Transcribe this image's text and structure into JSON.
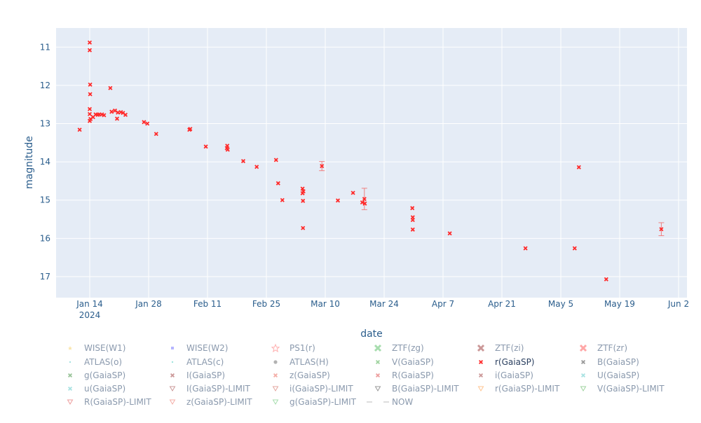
{
  "chart_data": {
    "type": "scatter",
    "title": "",
    "xlabel": "date",
    "ylabel": "magnitude",
    "x_range": [
      "2024-01-06",
      "2024-06-04"
    ],
    "y_range": [
      17.55,
      10.5
    ],
    "y_reversed": true,
    "grid": true,
    "x_ticks": [
      {
        "date": "2024-01-14",
        "label": "Jan 14",
        "sub": "2024"
      },
      {
        "date": "2024-01-28",
        "label": "Jan 28",
        "sub": ""
      },
      {
        "date": "2024-02-11",
        "label": "Feb 11",
        "sub": ""
      },
      {
        "date": "2024-02-25",
        "label": "Feb 25",
        "sub": ""
      },
      {
        "date": "2024-03-10",
        "label": "Mar 10",
        "sub": ""
      },
      {
        "date": "2024-03-24",
        "label": "Mar 24",
        "sub": ""
      },
      {
        "date": "2024-04-07",
        "label": "Apr 7",
        "sub": ""
      },
      {
        "date": "2024-04-21",
        "label": "Apr 21",
        "sub": ""
      },
      {
        "date": "2024-05-05",
        "label": "May 5",
        "sub": ""
      },
      {
        "date": "2024-05-19",
        "label": "May 19",
        "sub": ""
      },
      {
        "date": "2024-06-02",
        "label": "Jun 2",
        "sub": ""
      }
    ],
    "y_ticks": [
      11,
      12,
      13,
      14,
      15,
      16,
      17
    ],
    "series": [
      {
        "name": "r(GaiaSP)",
        "color": "#ff2a2a",
        "marker": "x",
        "points": [
          {
            "x": 11.6,
            "y": 13.16
          },
          {
            "x": 14.0,
            "y": 10.88
          },
          {
            "x": 14.0,
            "y": 11.08
          },
          {
            "x": 14.1,
            "y": 11.98
          },
          {
            "x": 14.1,
            "y": 12.23
          },
          {
            "x": 14.0,
            "y": 12.62
          },
          {
            "x": 14.0,
            "y": 12.75
          },
          {
            "x": 14.2,
            "y": 12.88
          },
          {
            "x": 14.0,
            "y": 12.93
          },
          {
            "x": 14.8,
            "y": 12.83
          },
          {
            "x": 15.4,
            "y": 12.76
          },
          {
            "x": 15.9,
            "y": 12.77
          },
          {
            "x": 16.3,
            "y": 12.76
          },
          {
            "x": 16.9,
            "y": 12.76
          },
          {
            "x": 17.4,
            "y": 12.78
          },
          {
            "x": 18.9,
            "y": 12.07
          },
          {
            "x": 19.2,
            "y": 12.69
          },
          {
            "x": 20.0,
            "y": 12.66
          },
          {
            "x": 20.7,
            "y": 12.71
          },
          {
            "x": 20.5,
            "y": 12.87
          },
          {
            "x": 21.4,
            "y": 12.7
          },
          {
            "x": 21.9,
            "y": 12.72
          },
          {
            "x": 22.5,
            "y": 12.77
          },
          {
            "x": 26.9,
            "y": 12.96
          },
          {
            "x": 27.7,
            "y": 13.0
          },
          {
            "x": 29.8,
            "y": 13.27
          },
          {
            "x": 37.7,
            "y": 13.16
          },
          {
            "x": 37.9,
            "y": 13.14
          },
          {
            "x": 41.6,
            "y": 13.6
          },
          {
            "x": 46.7,
            "y": 13.58
          },
          {
            "x": 46.6,
            "y": 13.64
          },
          {
            "x": 46.8,
            "y": 13.68
          },
          {
            "x": 50.5,
            "y": 13.98
          },
          {
            "x": 53.7,
            "y": 14.13
          },
          {
            "x": 58.3,
            "y": 13.95
          },
          {
            "x": 58.8,
            "y": 14.56
          },
          {
            "x": 59.8,
            "y": 15.0
          },
          {
            "x": 64.6,
            "y": 14.7
          },
          {
            "x": 64.8,
            "y": 14.77
          },
          {
            "x": 64.6,
            "y": 14.82
          },
          {
            "x": 64.7,
            "y": 15.02
          },
          {
            "x": 64.7,
            "y": 15.73
          },
          {
            "x": 69.2,
            "y": 14.11,
            "err": 0.12
          },
          {
            "x": 73.0,
            "y": 15.01
          },
          {
            "x": 76.6,
            "y": 14.81
          },
          {
            "x": 78.8,
            "y": 15.06
          },
          {
            "x": 79.3,
            "y": 14.97,
            "err": 0.28
          },
          {
            "x": 79.4,
            "y": 15.09
          },
          {
            "x": 90.7,
            "y": 15.21
          },
          {
            "x": 90.8,
            "y": 15.45
          },
          {
            "x": 90.8,
            "y": 15.52
          },
          {
            "x": 90.8,
            "y": 15.77
          },
          {
            "x": 99.6,
            "y": 15.87
          },
          {
            "x": 117.6,
            "y": 16.26
          },
          {
            "x": 129.3,
            "y": 16.26
          },
          {
            "x": 130.3,
            "y": 14.14
          },
          {
            "x": 136.8,
            "y": 17.07
          },
          {
            "x": 149.9,
            "y": 15.76,
            "err": 0.17
          }
        ]
      }
    ],
    "legend": {
      "placement": "bottom",
      "entries": [
        {
          "label": "WISE(W1)",
          "symbol": "star",
          "color": "#f5c542",
          "active": false
        },
        {
          "label": "WISE(W2)",
          "symbol": "square",
          "color": "#5b5bff",
          "active": false
        },
        {
          "label": "PS1(r)",
          "symbol": "star-open",
          "color": "#ff4d4d",
          "active": false
        },
        {
          "label": "ZTF(zg)",
          "symbol": "x-thick",
          "color": "#3cb44b",
          "active": false
        },
        {
          "label": "ZTF(zi)",
          "symbol": "x-thick",
          "color": "#8b1a1a",
          "active": false
        },
        {
          "label": "ZTF(zr)",
          "symbol": "x-thick",
          "color": "#ff3b3b",
          "active": false
        },
        {
          "label": "ATLAS(o)",
          "symbol": "dot",
          "color": "#3fbfbf",
          "active": false
        },
        {
          "label": "ATLAS(c)",
          "symbol": "dot",
          "color": "#2ec4b6",
          "active": false
        },
        {
          "label": "ATLAS(H)",
          "symbol": "circle",
          "color": "#555555",
          "active": false
        },
        {
          "label": "V(GaiaSP)",
          "symbol": "x",
          "color": "#2a9d2a",
          "active": false
        },
        {
          "label": "r(GaiaSP)",
          "symbol": "x",
          "color": "#ff2a2a",
          "active": true
        },
        {
          "label": "B(GaiaSP)",
          "symbol": "x",
          "color": "#1a1a1a",
          "active": false
        },
        {
          "label": "g(GaiaSP)",
          "symbol": "x",
          "color": "#1a7a1a",
          "active": false
        },
        {
          "label": "I(GaiaSP)",
          "symbol": "x",
          "color": "#8b1a1a",
          "active": false
        },
        {
          "label": "z(GaiaSP)",
          "symbol": "x",
          "color": "#e74c3c",
          "active": false
        },
        {
          "label": "R(GaiaSP)",
          "symbol": "x",
          "color": "#d62728",
          "active": false
        },
        {
          "label": "i(GaiaSP)",
          "symbol": "x",
          "color": "#8b1a1a",
          "active": false
        },
        {
          "label": "U(GaiaSP)",
          "symbol": "x",
          "color": "#3fbfbf",
          "active": false
        },
        {
          "label": "u(GaiaSP)",
          "symbol": "x",
          "color": "#3fbfbf",
          "active": false
        },
        {
          "label": "I(GaiaSP)-LIMIT",
          "symbol": "triangle-down",
          "color": "#8b1a1a",
          "active": false
        },
        {
          "label": "i(GaiaSP)-LIMIT",
          "symbol": "triangle-down",
          "color": "#c0392b",
          "active": false
        },
        {
          "label": "B(GaiaSP)-LIMIT",
          "symbol": "triangle-down",
          "color": "#1a1a1a",
          "active": false
        },
        {
          "label": "r(GaiaSP)-LIMIT",
          "symbol": "triangle-down",
          "color": "#ff7f0e",
          "active": false
        },
        {
          "label": "V(GaiaSP)-LIMIT",
          "symbol": "triangle-down",
          "color": "#2a9d2a",
          "active": false
        },
        {
          "label": "R(GaiaSP)-LIMIT",
          "symbol": "triangle-down",
          "color": "#d62728",
          "active": false
        },
        {
          "label": "z(GaiaSP)-LIMIT",
          "symbol": "triangle-down",
          "color": "#e74c3c",
          "active": false
        },
        {
          "label": "g(GaiaSP)-LIMIT",
          "symbol": "triangle-down",
          "color": "#3cb44b",
          "active": false
        },
        {
          "label": "NOW",
          "symbol": "dash",
          "color": "#888888",
          "active": false
        }
      ]
    },
    "colors": {
      "plot_bg": "#e5ecf6",
      "grid": "#ffffff",
      "axis_text": "#2a5d8c",
      "legend_inactive": "#8a99ad",
      "legend_active": "#2a3f5f"
    }
  }
}
